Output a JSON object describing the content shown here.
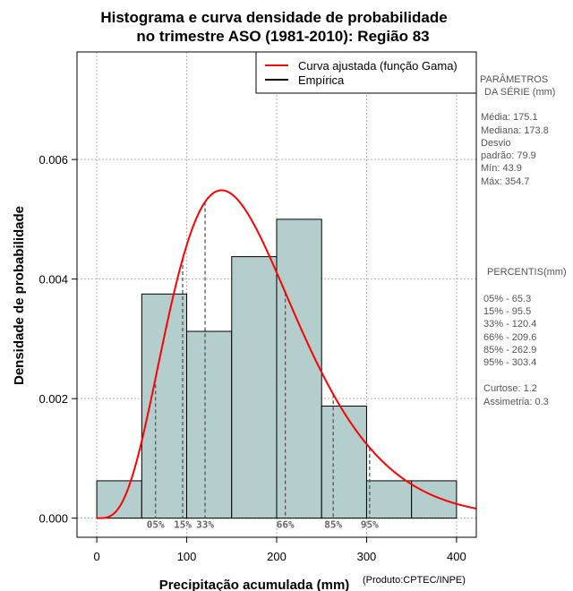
{
  "chart_data": {
    "type": "bar",
    "title_line1": "Histograma e curva densidade de probabilidade",
    "title_line2": "no trimestre ASO (1981-2010): Região 83",
    "xlabel": "Precipitação acumulada (mm)",
    "ylabel": "Densidade de probabilidade",
    "credit": "(Produto:CPTEC/INPE)",
    "xlim": [
      -22,
      422
    ],
    "ylim": [
      -0.00032,
      0.0078
    ],
    "x_ticks": [
      0,
      100,
      200,
      300,
      400
    ],
    "x_tick_labels": [
      "0",
      "100",
      "200",
      "300",
      "400"
    ],
    "y_ticks": [
      0.0,
      0.002,
      0.004,
      0.006
    ],
    "y_tick_labels": [
      "0.000",
      "0.002",
      "0.004",
      "0.006"
    ],
    "grid": true,
    "bins": [
      {
        "start": 0,
        "end": 50,
        "density": 0.000625
      },
      {
        "start": 50,
        "end": 100,
        "density": 0.00375
      },
      {
        "start": 100,
        "end": 150,
        "density": 0.003125
      },
      {
        "start": 150,
        "end": 200,
        "density": 0.004375
      },
      {
        "start": 200,
        "end": 250,
        "density": 0.005
      },
      {
        "start": 250,
        "end": 300,
        "density": 0.001875
      },
      {
        "start": 300,
        "end": 350,
        "density": 0.000625
      },
      {
        "start": 350,
        "end": 400,
        "density": 0.000625
      }
    ],
    "gamma_fit": {
      "shape": 4.8,
      "scale": 36.5
    },
    "legend": {
      "position": "top-right",
      "entries": [
        {
          "label": "Curva ajustada (função Gama)",
          "color": "#ff0000"
        },
        {
          "label": "Empírica",
          "color": "#000000"
        }
      ]
    },
    "percentile_markers": [
      {
        "label": "05%",
        "value": 65.3
      },
      {
        "label": "15%",
        "value": 95.5
      },
      {
        "label": "33%",
        "value": 120.4
      },
      {
        "label": "66%",
        "value": 209.6
      },
      {
        "label": "85%",
        "value": 262.9
      },
      {
        "label": "95%",
        "value": 303.4
      }
    ]
  },
  "side_panel": {
    "params_title_1": "PARÂMETROS",
    "params_title_2": "DA SÉRIE (mm)",
    "media": "Média:  175.1",
    "mediana": "Mediana:  173.8",
    "desvio_1": "Desvio",
    "desvio_2": "padrão:  79.9",
    "min": "Mín:  43.9",
    "max": "Máx:  354.7",
    "percentis_title": "PERCENTIS(mm)",
    "p05": "05% -  65.3",
    "p15": "15% -  95.5",
    "p33": "33% -  120.4",
    "p66": "66% -  209.6",
    "p85": "85% -  262.9",
    "p95": "95% -  303.4",
    "curtose": "Curtose:  1.2",
    "assimetria": "Assimetria:  0.3"
  },
  "colors": {
    "bar_fill": "#b4cecd",
    "bar_stroke": "#000000",
    "curve": "#ff0000",
    "grid": "#b0b0b0",
    "marker": "#555555"
  }
}
